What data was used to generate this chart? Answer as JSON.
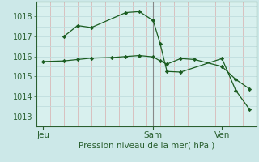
{
  "background_color": "#cce8e8",
  "plot_bg_color": "#d8f0ee",
  "line_color": "#1a5c20",
  "marker_color": "#1a5c20",
  "xlabel": "Pression niveau de la mer( hPa )",
  "ylim": [
    1012.5,
    1018.75
  ],
  "yticks": [
    1013,
    1014,
    1015,
    1016,
    1017,
    1018
  ],
  "day_labels": [
    "Jeu",
    "Sam",
    "Ven"
  ],
  "day_positions": [
    0.5,
    8.5,
    13.5
  ],
  "xlim": [
    0,
    16
  ],
  "line1_x": [
    0.5,
    2.0,
    3.0,
    4.0,
    5.5,
    6.5,
    7.5,
    8.5,
    9.0,
    9.5,
    10.5,
    11.5,
    13.5,
    14.5,
    15.5
  ],
  "line1_y": [
    1015.75,
    1015.78,
    1015.85,
    1015.92,
    1015.95,
    1016.0,
    1016.05,
    1015.98,
    1015.78,
    1015.62,
    1015.9,
    1015.85,
    1015.5,
    1014.85,
    1014.38
  ],
  "line2_x": [
    2.0,
    3.0,
    4.0,
    6.5,
    7.5,
    8.5,
    9.0,
    9.5,
    10.5,
    13.5,
    14.5,
    15.5
  ],
  "line2_y": [
    1017.0,
    1017.55,
    1017.45,
    1018.2,
    1018.25,
    1017.8,
    1016.65,
    1015.25,
    1015.22,
    1015.9,
    1014.3,
    1013.35
  ],
  "vline_x": 8.5,
  "vline_color": "#888888",
  "font_color": "#2a6030",
  "tick_font_color": "#2a6030",
  "label_fontsize": 7.5,
  "tick_fontsize": 7.0,
  "grid_pink": "#d8b8b8",
  "grid_light": "#c0dede"
}
